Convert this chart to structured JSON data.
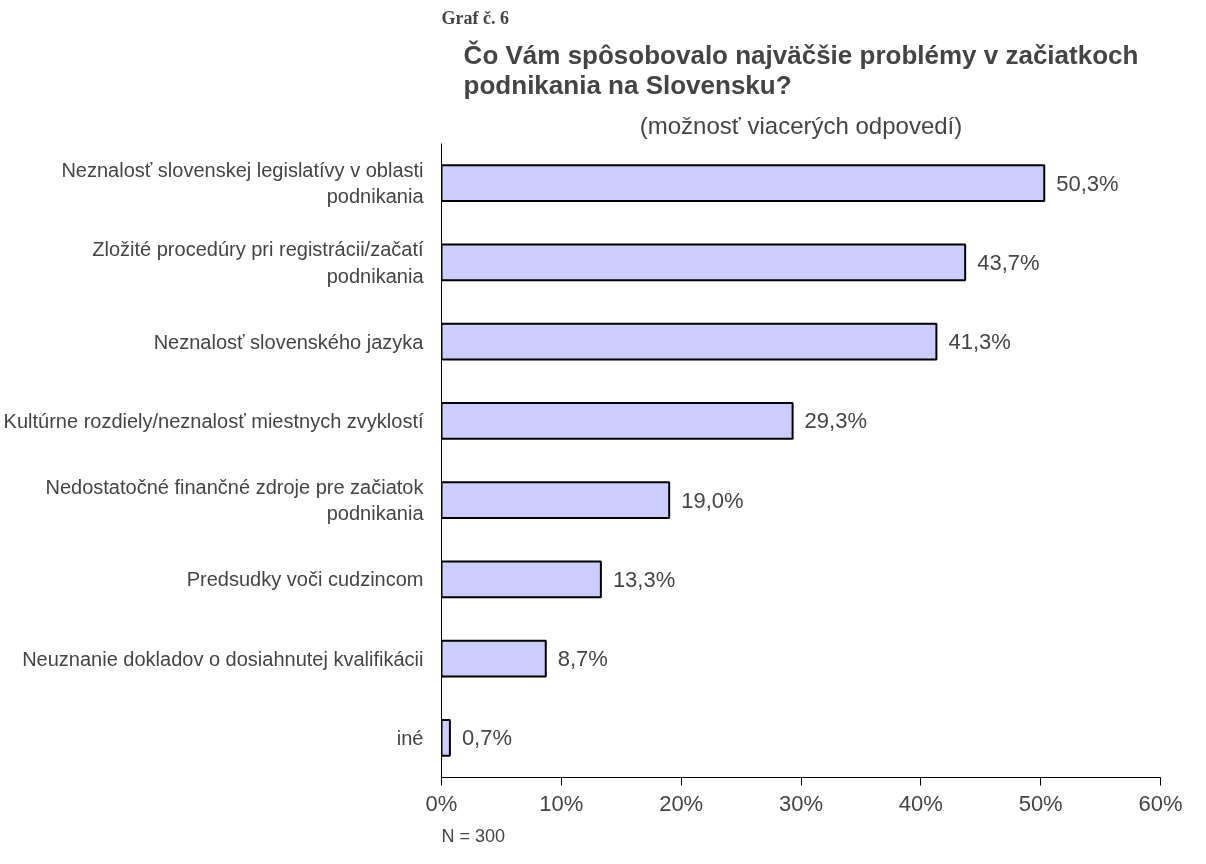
{
  "chart_data": {
    "type": "bar",
    "orientation": "horizontal",
    "title": "Čo Vám spôsobovalo najväčšie problémy v začiatkoch podnikania na Slovensku?",
    "subtitle": "(možnosť viacerých odpovedí)",
    "categories": [
      "Neznalosť slovenskej legislatívy v oblasti podnikania",
      "Zložité procedúry pri registrácii/začatí podnikania",
      "Neznalosť slovenského jazyka",
      "Kultúrne rozdiely/neznalosť miestnych zvyklostí",
      "Nedostatočné finančné zdroje pre začiatok podnikania",
      "Predsudky voči cudzincom",
      "Neuznanie dokladov o dosiahnutej kvalifikácii",
      "iné"
    ],
    "values": [
      50.3,
      43.7,
      41.3,
      29.3,
      19.0,
      13.3,
      8.7,
      0.7
    ],
    "value_labels": [
      "50,3%",
      "43,7%",
      "41,3%",
      "29,3%",
      "19,0%",
      "13,3%",
      "8,7%",
      "0,7%"
    ],
    "color": "#ccccff",
    "xlim": [
      0,
      60
    ],
    "xticks": [
      {
        "value": 0,
        "label": "0%"
      },
      {
        "value": 10,
        "label": "10%"
      },
      {
        "value": 20,
        "label": "20%"
      },
      {
        "value": 30,
        "label": "30%"
      },
      {
        "value": 40,
        "label": "40%"
      },
      {
        "value": 50,
        "label": "50%"
      },
      {
        "value": 60,
        "label": "60%"
      }
    ],
    "grid": false,
    "annotations": [
      "Graf č. 6",
      "N = 300"
    ]
  }
}
